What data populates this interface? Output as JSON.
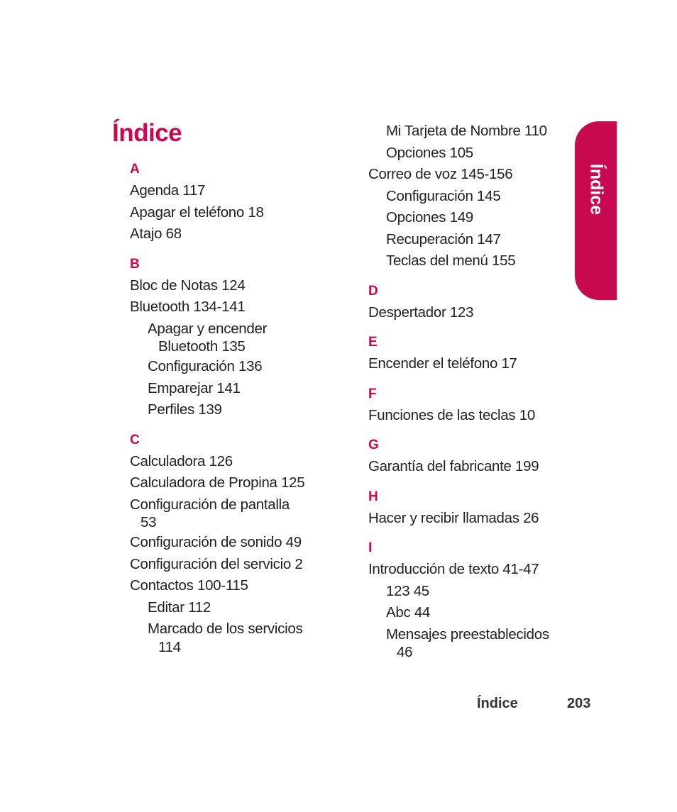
{
  "page_title": "Índice",
  "tab_label": "Índice",
  "footer": {
    "label": "Índice",
    "page_number": "203"
  },
  "left_column": {
    "A": {
      "letter": "A",
      "items": [
        "Agenda 117",
        "Apagar el teléfono 18",
        "Atajo 68"
      ]
    },
    "B": {
      "letter": "B",
      "items": [
        "Bloc de Notas 124",
        "Bluetooth 134-141"
      ],
      "sub": [
        "Apagar y encender",
        "Bluetooth 135",
        "Configuración 136",
        "Emparejar 141",
        "Perfiles 139"
      ]
    },
    "C": {
      "letter": "C",
      "items": [
        "Calculadora 126",
        "Calculadora de Propina 125",
        "Configuración de pantalla",
        "53",
        "Configuración de sonido 49",
        "Configuración del servicio 2",
        "Contactos 100-115"
      ],
      "sub": [
        "Editar 112",
        "Marcado de los servicios",
        "114"
      ]
    }
  },
  "right_column": {
    "C_cont": {
      "sub_top": [
        "Mi Tarjeta de Nombre 110",
        "Opciones 105"
      ],
      "item": "Correo de voz 145-156",
      "sub": [
        "Configuración 145",
        "Opciones 149",
        "Recuperación 147",
        "Teclas del menú 155"
      ]
    },
    "D": {
      "letter": "D",
      "items": [
        "Despertador 123"
      ]
    },
    "E": {
      "letter": "E",
      "items": [
        "Encender el teléfono 17"
      ]
    },
    "F": {
      "letter": "F",
      "items": [
        "Funciones de las teclas 10"
      ]
    },
    "G": {
      "letter": "G",
      "items": [
        "Garantía del fabricante 199"
      ]
    },
    "H": {
      "letter": "H",
      "items": [
        "Hacer y recibir llamadas 26"
      ]
    },
    "I": {
      "letter": "I",
      "items": [
        "Introducción de texto 41-47"
      ],
      "sub": [
        "123 45",
        "Abc 44",
        "Mensajes preestablecidos",
        "46"
      ]
    }
  }
}
